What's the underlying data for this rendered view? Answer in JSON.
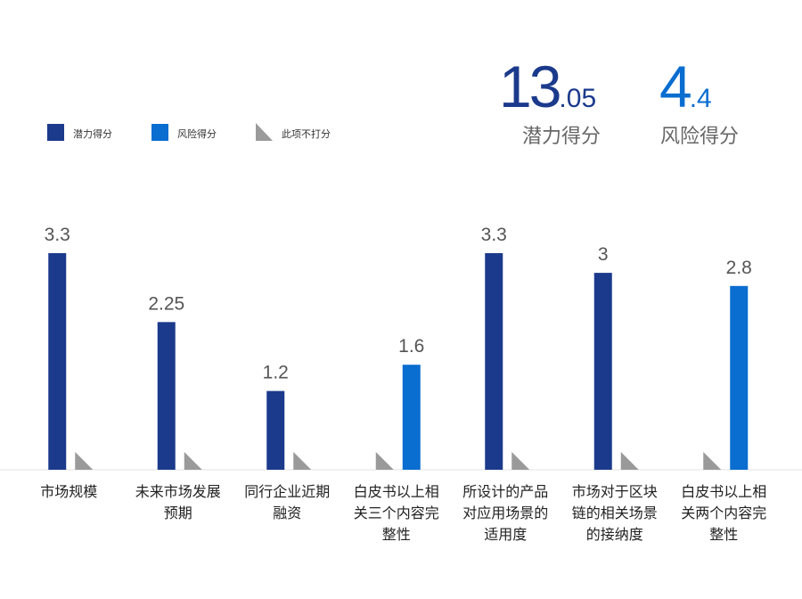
{
  "chart_data": {
    "type": "bar",
    "scores": [
      {
        "int": "13",
        "frac": ".05",
        "label": "潜力得分",
        "color": "#1b3a8c"
      },
      {
        "int": "4",
        "frac": ".4",
        "label": "风险得分",
        "color": "#0a6dd0"
      }
    ],
    "categories": [
      "市场规模",
      "未来市场发展预期",
      "同行企业近期融资",
      "白皮书以上相关三个内容完整性",
      "所设计的产品对应用场景的适用度",
      "市场对于区块链的相关场景的接纳度",
      "白皮书以上相关两个内容完整性"
    ],
    "series": [
      {
        "name": "潜力得分",
        "color": "#1b3a8c",
        "values": [
          3.3,
          2.25,
          1.2,
          null,
          3.3,
          3,
          null
        ]
      },
      {
        "name": "风险得分",
        "color": "#0a6dd0",
        "values": [
          null,
          null,
          null,
          1.6,
          null,
          null,
          2.8
        ]
      }
    ],
    "not_scored_label": "此项不打分",
    "not_scored_color": "#9a9a9a",
    "ylim": [
      0,
      3.3
    ]
  }
}
